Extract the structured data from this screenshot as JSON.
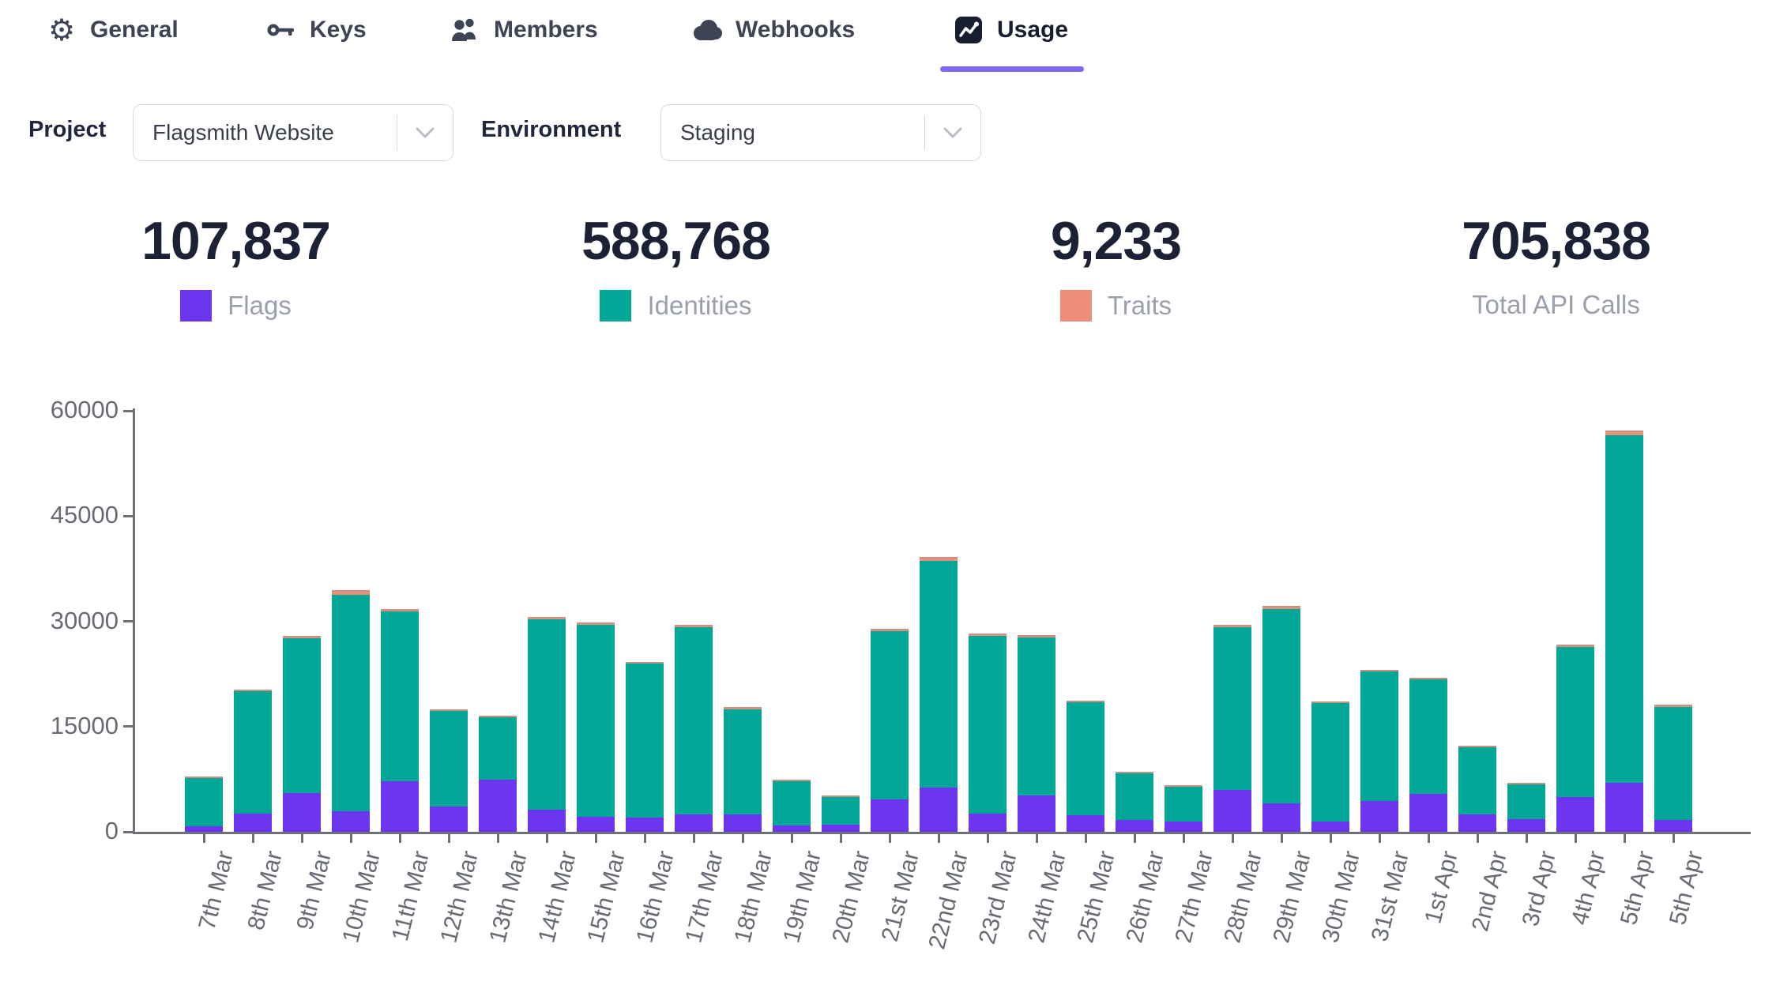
{
  "tabs": [
    {
      "label": "General",
      "icon": "gear-icon"
    },
    {
      "label": "Keys",
      "icon": "key-icon"
    },
    {
      "label": "Members",
      "icon": "members-icon"
    },
    {
      "label": "Webhooks",
      "icon": "cloud-icon"
    },
    {
      "label": "Usage",
      "icon": "chart-icon",
      "active": true
    }
  ],
  "filters": {
    "project_label": "Project",
    "project_value": "Flagsmith Website",
    "environment_label": "Environment",
    "environment_value": "Staging"
  },
  "stats": [
    {
      "value": "107,837",
      "label": "Flags",
      "color": "#6b35f2"
    },
    {
      "value": "588,768",
      "label": "Identities",
      "color": "#00a796"
    },
    {
      "value": "9,233",
      "label": "Traits",
      "color": "#ef8d79"
    },
    {
      "value": "705,838",
      "label": "Total API Calls",
      "color": ""
    }
  ],
  "chart_data": {
    "type": "bar",
    "stacked": true,
    "title": "",
    "xlabel": "",
    "ylabel": "",
    "ylim": [
      0,
      60000
    ],
    "yticks": [
      0,
      15000,
      30000,
      45000,
      60000
    ],
    "grid": false,
    "legend_position": "above-chart-in-stats-row",
    "categories": [
      "7th Mar",
      "8th Mar",
      "9th Mar",
      "10th Mar",
      "11th Mar",
      "12th Mar",
      "13th Mar",
      "14th Mar",
      "15th Mar",
      "16th Mar",
      "17th Mar",
      "18th Mar",
      "19th Mar",
      "20th Mar",
      "21st Mar",
      "22nd Mar",
      "23rd Mar",
      "24th Mar",
      "25th Mar",
      "26th Mar",
      "27th Mar",
      "28th Mar",
      "29th Mar",
      "30th Mar",
      "31st Mar",
      "1st Apr",
      "2nd Apr",
      "3rd Apr",
      "4th Apr",
      "5th Apr",
      "5th Apr"
    ],
    "series": [
      {
        "name": "Flags",
        "color": "#6b35f2",
        "values": [
          800,
          2600,
          5500,
          2900,
          7200,
          3650,
          7500,
          3150,
          2100,
          2000,
          2500,
          2500,
          900,
          1000,
          4600,
          6300,
          2600,
          5200,
          2400,
          1700,
          1450,
          6000,
          4000,
          1500,
          4400,
          5400,
          2500,
          1800,
          5000,
          7000,
          1700
        ]
      },
      {
        "name": "Identities",
        "color": "#00a796",
        "values": [
          6950,
          17400,
          22050,
          30850,
          24150,
          13550,
          8950,
          27100,
          27350,
          21950,
          26650,
          15000,
          6400,
          4100,
          23950,
          32300,
          25300,
          22500,
          16050,
          6750,
          5050,
          23150,
          27750,
          16900,
          18400,
          16450,
          9650,
          5100,
          21350,
          49500,
          16100
        ]
      },
      {
        "name": "Traits",
        "color": "#ef8d79",
        "values": [
          150,
          300,
          350,
          750,
          450,
          200,
          150,
          350,
          350,
          250,
          350,
          300,
          100,
          100,
          350,
          600,
          300,
          300,
          250,
          150,
          100,
          350,
          450,
          200,
          300,
          150,
          150,
          100,
          350,
          700,
          300
        ]
      }
    ]
  },
  "colors": {
    "tab_text": "#3e4355",
    "tab_active_text": "#191d30",
    "tab_underline": "#8168f4",
    "heading_text": "#1d2135",
    "muted_text": "#9aa0ab",
    "axis": "#6d7176",
    "axis_text": "#676c74",
    "select_border": "#d5d8dc"
  }
}
